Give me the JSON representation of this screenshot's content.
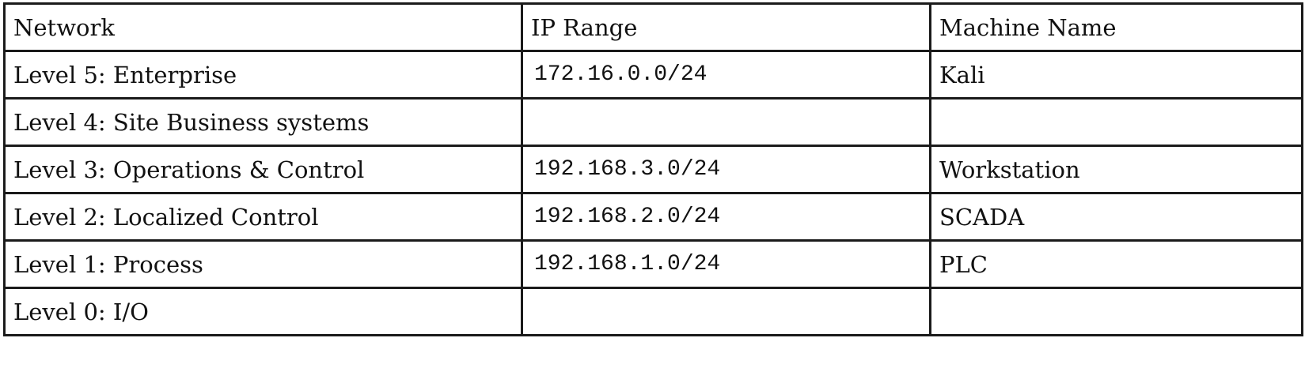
{
  "table": {
    "headers": [
      "Network",
      "IP Range",
      "Machine Name"
    ],
    "rows": [
      [
        "Level 5: Enterprise",
        "172.16.0.0/24",
        "Kali"
      ],
      [
        "Level 4: Site Business systems",
        "",
        ""
      ],
      [
        "Level 3: Operations & Control",
        "192.168.3.0/24",
        "Workstation"
      ],
      [
        "Level 2: Localized Control",
        "192.168.2.0/24",
        "SCADA"
      ],
      [
        "Level 1: Process",
        "192.168.1.0/24",
        "PLC"
      ],
      [
        "Level 0: I/O",
        "",
        ""
      ]
    ]
  }
}
